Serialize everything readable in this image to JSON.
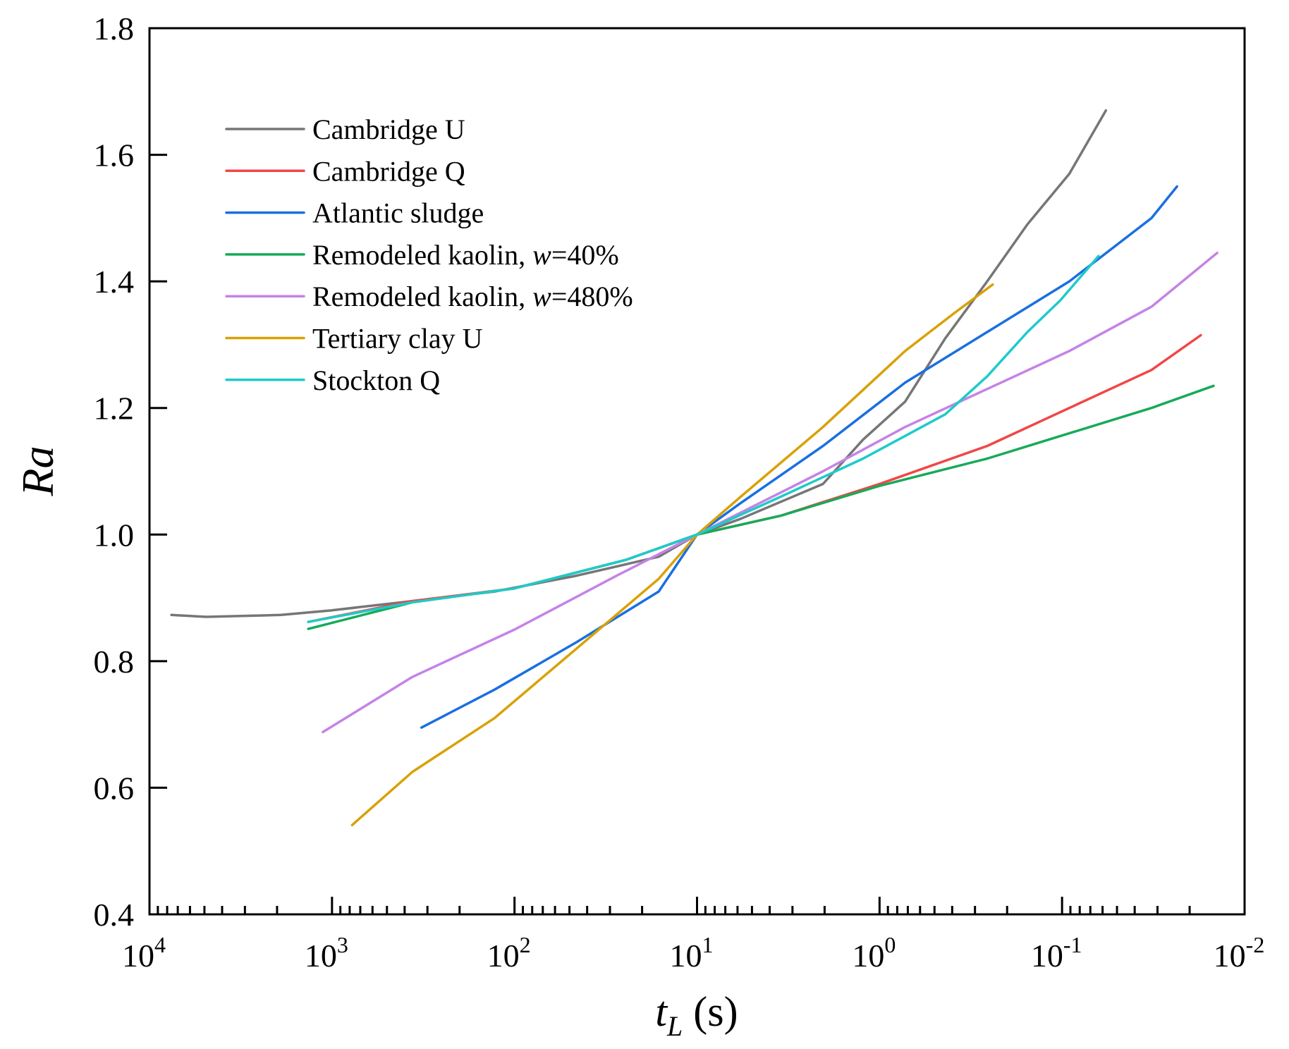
{
  "chart_data": {
    "type": "line",
    "title": "",
    "xlabel": {
      "main": "t",
      "sub": "L",
      "unit": " (s)"
    },
    "ylabel": "Ra",
    "xscale": "log",
    "x_reversed": true,
    "xlim_log10": [
      4,
      -2
    ],
    "ylim": [
      0.4,
      1.8
    ],
    "yticks": [
      "0.4",
      "0.6",
      "0.8",
      "1.0",
      "1.2",
      "1.4",
      "1.6",
      "1.8"
    ],
    "xticks": [
      {
        "base": "10",
        "exp": "4"
      },
      {
        "base": "10",
        "exp": "3"
      },
      {
        "base": "10",
        "exp": "2"
      },
      {
        "base": "10",
        "exp": "1"
      },
      {
        "base": "10",
        "exp": "0"
      },
      {
        "base": "10",
        "exp": "-1"
      },
      {
        "base": "10",
        "exp": "-2"
      }
    ],
    "grid": false,
    "legend_placement": "top-left",
    "series": [
      {
        "name": "Cambridge U",
        "color": "#767676",
        "log10_x": [
          3.88,
          3.69,
          3.28,
          3.01,
          2.56,
          2.11,
          1.66,
          1.21,
          1.0,
          0.76,
          0.31,
          0.09,
          -0.14,
          -0.36,
          -0.59,
          -0.81,
          -1.04,
          -1.24
        ],
        "y": [
          0.873,
          0.87,
          0.873,
          0.88,
          0.895,
          0.91,
          0.935,
          0.965,
          1.0,
          1.025,
          1.08,
          1.15,
          1.21,
          1.31,
          1.4,
          1.49,
          1.57,
          1.67
        ]
      },
      {
        "name": "Cambridge Q",
        "color": "#f24646",
        "log10_x": [
          3.13,
          2.56,
          2.0,
          1.39,
          1.0,
          0.54,
          0.0,
          -0.59,
          -1.04,
          -1.49,
          -1.76
        ],
        "y": [
          0.862,
          0.895,
          0.915,
          0.96,
          1.0,
          1.03,
          1.08,
          1.14,
          1.2,
          1.26,
          1.315
        ]
      },
      {
        "name": "Atlantic sludge",
        "color": "#1a6fe0",
        "log10_x": [
          2.51,
          2.11,
          1.66,
          1.21,
          1.0,
          0.76,
          0.31,
          -0.14,
          -0.59,
          -1.04,
          -1.49,
          -1.63
        ],
        "y": [
          0.695,
          0.755,
          0.83,
          0.91,
          1.0,
          1.05,
          1.14,
          1.24,
          1.32,
          1.4,
          1.5,
          1.55
        ]
      },
      {
        "name": "Remodeled kaolin, ",
        "italic": "w",
        "suffix": "=40%",
        "color": "#17aa58",
        "log10_x": [
          3.13,
          2.56,
          2.0,
          1.39,
          1.0,
          0.54,
          0.0,
          -0.59,
          -1.04,
          -1.49,
          -1.83
        ],
        "y": [
          0.851,
          0.893,
          0.915,
          0.96,
          1.0,
          1.03,
          1.077,
          1.12,
          1.16,
          1.2,
          1.235
        ]
      },
      {
        "name": "Remodeled kaolin, ",
        "italic": "w",
        "suffix": "=480%",
        "color": "#c583e6",
        "log10_x": [
          3.05,
          2.56,
          2.0,
          1.44,
          1.0,
          0.31,
          -0.14,
          -0.59,
          -1.04,
          -1.49,
          -1.85
        ],
        "y": [
          0.688,
          0.775,
          0.85,
          0.935,
          1.0,
          1.1,
          1.17,
          1.23,
          1.29,
          1.36,
          1.445
        ]
      },
      {
        "name": "Tertiary clay U",
        "color": "#d9a106",
        "log10_x": [
          2.89,
          2.56,
          2.11,
          1.66,
          1.21,
          1.0,
          0.76,
          0.31,
          -0.14,
          -0.41,
          -0.62
        ],
        "y": [
          0.541,
          0.625,
          0.71,
          0.82,
          0.93,
          1.0,
          1.06,
          1.17,
          1.29,
          1.35,
          1.395
        ]
      },
      {
        "name": "Stockton Q",
        "color": "#1fcaca",
        "log10_x": [
          3.13,
          2.56,
          2.0,
          1.39,
          1.0,
          0.54,
          0.09,
          -0.36,
          -0.59,
          -0.81,
          -0.99,
          -1.2
        ],
        "y": [
          0.862,
          0.893,
          0.915,
          0.96,
          1.0,
          1.06,
          1.12,
          1.19,
          1.25,
          1.32,
          1.37,
          1.44
        ]
      }
    ]
  }
}
